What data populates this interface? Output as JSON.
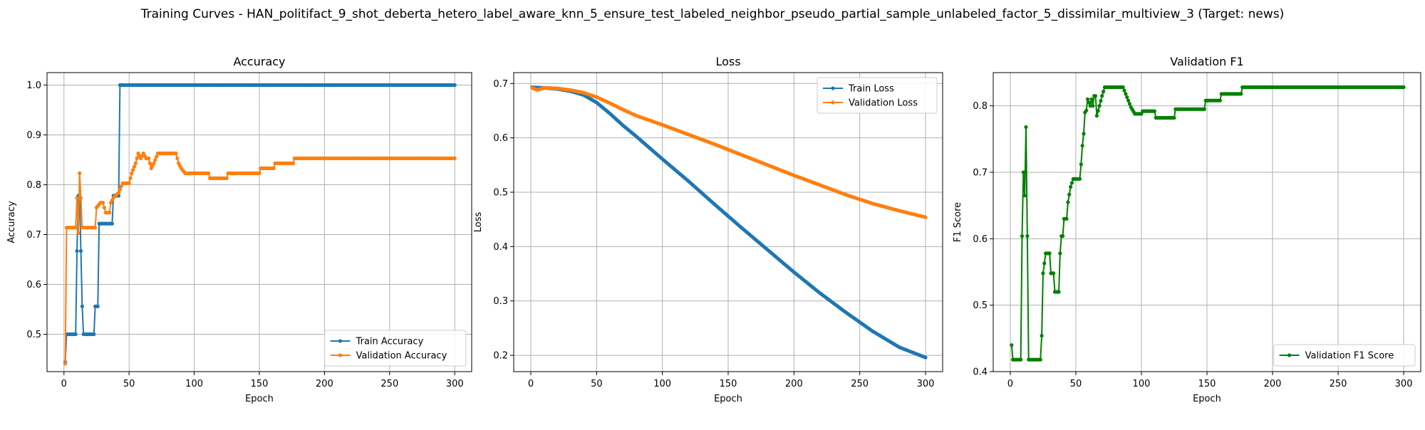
{
  "figure": {
    "title": "Training Curves - HAN_politifact_9_shot_deberta_hetero_label_aware_knn_5_ensure_test_labeled_neighbor_pseudo_partial_sample_unlabeled_factor_5_dissimilar_multiview_3 (Target: news)"
  },
  "chart_data": [
    {
      "type": "line",
      "title": "Accuracy",
      "xlabel": "Epoch",
      "ylabel": "Accuracy",
      "xlim": [
        -13,
        313
      ],
      "ylim": [
        0.425,
        1.025
      ],
      "xticks": [
        0,
        50,
        100,
        150,
        200,
        250,
        300
      ],
      "yticks": [
        0.5,
        0.6,
        0.7,
        0.8,
        0.9,
        1.0
      ],
      "ytick_labels": [
        "0.5",
        "0.6",
        "0.7",
        "0.8",
        "0.9",
        "1.0"
      ],
      "grid": true,
      "legend": "lower-right",
      "series": [
        {
          "name": "Train Accuracy",
          "color": "#1f77b4",
          "points": [
            [
              1,
              0.444
            ],
            [
              2,
              0.5
            ],
            [
              9,
              0.5
            ],
            [
              10,
              0.667
            ],
            [
              11,
              0.778
            ],
            [
              12,
              0.778
            ],
            [
              13,
              0.667
            ],
            [
              14,
              0.556
            ],
            [
              15,
              0.5
            ],
            [
              23,
              0.5
            ],
            [
              24,
              0.556
            ],
            [
              26,
              0.556
            ],
            [
              27,
              0.722
            ],
            [
              37,
              0.722
            ],
            [
              38,
              0.778
            ],
            [
              42,
              0.778
            ],
            [
              43,
              1.0
            ],
            [
              300,
              1.0
            ]
          ]
        },
        {
          "name": "Validation Accuracy",
          "color": "#ff7f0e",
          "points": [
            [
              1,
              0.441
            ],
            [
              2,
              0.714
            ],
            [
              9,
              0.714
            ],
            [
              10,
              0.773
            ],
            [
              11,
              0.703
            ],
            [
              12,
              0.823
            ],
            [
              13,
              0.773
            ],
            [
              14,
              0.714
            ],
            [
              24,
              0.714
            ],
            [
              25,
              0.754
            ],
            [
              28,
              0.764
            ],
            [
              30,
              0.764
            ],
            [
              32,
              0.744
            ],
            [
              35,
              0.744
            ],
            [
              36,
              0.764
            ],
            [
              38,
              0.774
            ],
            [
              42,
              0.784
            ],
            [
              45,
              0.803
            ],
            [
              50,
              0.803
            ],
            [
              52,
              0.823
            ],
            [
              55,
              0.843
            ],
            [
              57,
              0.863
            ],
            [
              59,
              0.853
            ],
            [
              61,
              0.863
            ],
            [
              63,
              0.853
            ],
            [
              65,
              0.853
            ],
            [
              67,
              0.833
            ],
            [
              69,
              0.843
            ],
            [
              72,
              0.863
            ],
            [
              86,
              0.863
            ],
            [
              88,
              0.843
            ],
            [
              90,
              0.833
            ],
            [
              93,
              0.823
            ],
            [
              111,
              0.823
            ],
            [
              112,
              0.813
            ],
            [
              125,
              0.813
            ],
            [
              126,
              0.823
            ],
            [
              150,
              0.823
            ],
            [
              151,
              0.833
            ],
            [
              161,
              0.833
            ],
            [
              162,
              0.843
            ],
            [
              176,
              0.843
            ],
            [
              177,
              0.853
            ],
            [
              300,
              0.853
            ]
          ]
        }
      ]
    },
    {
      "type": "line",
      "title": "Loss",
      "xlabel": "Epoch",
      "ylabel": "Loss",
      "xlim": [
        -13,
        313
      ],
      "ylim": [
        0.17,
        0.72
      ],
      "xticks": [
        0,
        50,
        100,
        150,
        200,
        250,
        300
      ],
      "yticks": [
        0.2,
        0.3,
        0.4,
        0.5,
        0.6,
        0.7
      ],
      "ytick_labels": [
        "0.2",
        "0.3",
        "0.4",
        "0.5",
        "0.6",
        "0.7"
      ],
      "grid": true,
      "legend": "top-right",
      "series": [
        {
          "name": "Train Loss",
          "color": "#1f77b4",
          "points": [
            [
              1,
              0.693
            ],
            [
              10,
              0.692
            ],
            [
              20,
              0.69
            ],
            [
              30,
              0.686
            ],
            [
              40,
              0.679
            ],
            [
              50,
              0.665
            ],
            [
              60,
              0.645
            ],
            [
              70,
              0.623
            ],
            [
              80,
              0.603
            ],
            [
              90,
              0.582
            ],
            [
              100,
              0.561
            ],
            [
              120,
              0.52
            ],
            [
              140,
              0.477
            ],
            [
              160,
              0.435
            ],
            [
              180,
              0.394
            ],
            [
              200,
              0.353
            ],
            [
              220,
              0.314
            ],
            [
              240,
              0.278
            ],
            [
              260,
              0.244
            ],
            [
              280,
              0.215
            ],
            [
              300,
              0.196
            ]
          ]
        },
        {
          "name": "Validation Loss",
          "color": "#ff7f0e",
          "points": [
            [
              1,
              0.692
            ],
            [
              5,
              0.688
            ],
            [
              10,
              0.692
            ],
            [
              20,
              0.691
            ],
            [
              30,
              0.688
            ],
            [
              40,
              0.683
            ],
            [
              50,
              0.675
            ],
            [
              60,
              0.664
            ],
            [
              70,
              0.652
            ],
            [
              80,
              0.641
            ],
            [
              100,
              0.624
            ],
            [
              120,
              0.606
            ],
            [
              140,
              0.588
            ],
            [
              160,
              0.569
            ],
            [
              180,
              0.55
            ],
            [
              200,
              0.531
            ],
            [
              220,
              0.513
            ],
            [
              240,
              0.495
            ],
            [
              260,
              0.479
            ],
            [
              280,
              0.466
            ],
            [
              300,
              0.454
            ]
          ]
        }
      ]
    },
    {
      "type": "line",
      "title": "Validation F1",
      "xlabel": "Epoch",
      "ylabel": "F1 Score",
      "xlim": [
        -13,
        313
      ],
      "ylim": [
        0.4,
        0.85
      ],
      "xticks": [
        0,
        50,
        100,
        150,
        200,
        250,
        300
      ],
      "yticks": [
        0.4,
        0.5,
        0.6,
        0.7,
        0.8
      ],
      "ytick_labels": [
        "0.4",
        "0.5",
        "0.6",
        "0.7",
        "0.8"
      ],
      "grid": true,
      "legend": "lower-right",
      "series": [
        {
          "name": "Validation F1 Score",
          "color": "#008000",
          "points": [
            [
              1,
              0.44
            ],
            [
              2,
              0.418
            ],
            [
              8,
              0.418
            ],
            [
              9,
              0.604
            ],
            [
              10,
              0.7
            ],
            [
              11,
              0.665
            ],
            [
              12,
              0.768
            ],
            [
              13,
              0.604
            ],
            [
              14,
              0.418
            ],
            [
              23,
              0.418
            ],
            [
              24,
              0.454
            ],
            [
              25,
              0.548
            ],
            [
              27,
              0.578
            ],
            [
              30,
              0.578
            ],
            [
              31,
              0.548
            ],
            [
              33,
              0.548
            ],
            [
              34,
              0.52
            ],
            [
              37,
              0.52
            ],
            [
              38,
              0.578
            ],
            [
              39,
              0.604
            ],
            [
              40,
              0.604
            ],
            [
              41,
              0.63
            ],
            [
              43,
              0.63
            ],
            [
              44,
              0.655
            ],
            [
              46,
              0.678
            ],
            [
              48,
              0.69
            ],
            [
              53,
              0.69
            ],
            [
              54,
              0.712
            ],
            [
              55,
              0.74
            ],
            [
              56,
              0.758
            ],
            [
              57,
              0.79
            ],
            [
              58,
              0.793
            ],
            [
              59,
              0.81
            ],
            [
              61,
              0.8
            ],
            [
              62,
              0.81
            ],
            [
              63,
              0.8
            ],
            [
              64,
              0.815
            ],
            [
              65,
              0.815
            ],
            [
              66,
              0.785
            ],
            [
              68,
              0.8
            ],
            [
              70,
              0.815
            ],
            [
              72,
              0.828
            ],
            [
              86,
              0.828
            ],
            [
              88,
              0.818
            ],
            [
              90,
              0.808
            ],
            [
              92,
              0.798
            ],
            [
              95,
              0.788
            ],
            [
              100,
              0.788
            ],
            [
              101,
              0.792
            ],
            [
              110,
              0.792
            ],
            [
              111,
              0.782
            ],
            [
              125,
              0.782
            ],
            [
              126,
              0.795
            ],
            [
              148,
              0.795
            ],
            [
              149,
              0.808
            ],
            [
              160,
              0.808
            ],
            [
              161,
              0.818
            ],
            [
              176,
              0.818
            ],
            [
              177,
              0.828
            ],
            [
              300,
              0.828
            ]
          ]
        }
      ]
    }
  ]
}
